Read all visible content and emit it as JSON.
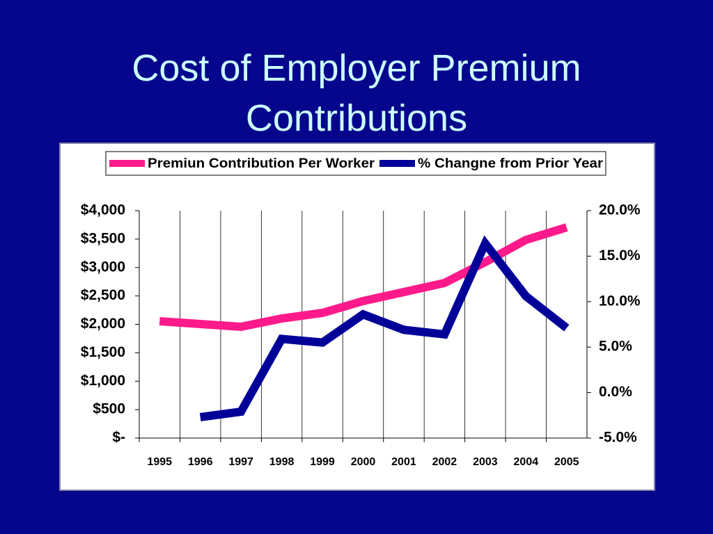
{
  "chart_data": {
    "type": "line",
    "title": "Cost of Employer Premium Contributions",
    "categories": [
      "1995",
      "1996",
      "1997",
      "1998",
      "1999",
      "2000",
      "2001",
      "2002",
      "2003",
      "2004",
      "2005"
    ],
    "series": [
      {
        "name": "Premiun Contribution Per Worker",
        "color": "#ff1a8c",
        "values": [
          2055,
          2006,
          1957,
          2104,
          2202,
          2410,
          2569,
          2728,
          3095,
          3486,
          3706
        ]
      },
      {
        "name": "% Changne from Prior Year",
        "color": "#000099",
        "axis": "y2",
        "values": [
          null,
          -2.7,
          -2.1,
          5.9,
          5.5,
          8.6,
          6.9,
          6.4,
          16.4,
          10.6,
          7.1
        ]
      }
    ],
    "ylim": [
      0,
      4000
    ],
    "yticks": [
      {
        "value": 0,
        "label": "$-"
      },
      {
        "value": 500,
        "label": "$500"
      },
      {
        "value": 1000,
        "label": "$1,000"
      },
      {
        "value": 1500,
        "label": "$1,500"
      },
      {
        "value": 2000,
        "label": "$2,000"
      },
      {
        "value": 2500,
        "label": "$2,500"
      },
      {
        "value": 3000,
        "label": "$3,000"
      },
      {
        "value": 3500,
        "label": "$3,500"
      },
      {
        "value": 4000,
        "label": "$4,000"
      }
    ],
    "y2lim": [
      -5,
      20
    ],
    "y2ticks": [
      {
        "value": -5,
        "label": "-5.0%"
      },
      {
        "value": 0,
        "label": "0.0%"
      },
      {
        "value": 5,
        "label": "5.0%"
      },
      {
        "value": 10,
        "label": "10.0%"
      },
      {
        "value": 15,
        "label": "15.0%"
      },
      {
        "value": 20,
        "label": "20.0%"
      }
    ],
    "grid": true,
    "legend": "top"
  }
}
